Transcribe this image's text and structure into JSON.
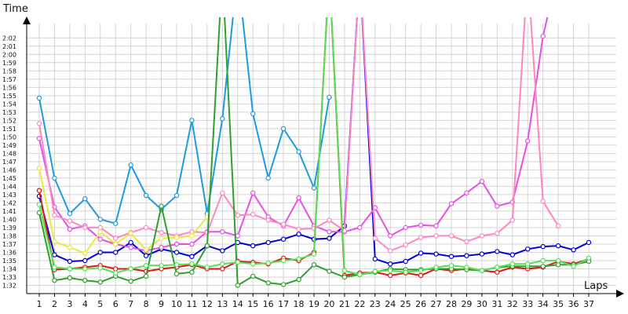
{
  "chart_data": {
    "type": "line",
    "xlabel": "Laps",
    "ylabel": "Time",
    "grid": true,
    "x_ticks": [
      "1",
      "2",
      "3",
      "4",
      "5",
      "6",
      "7",
      "8",
      "9",
      "10",
      "11",
      "12",
      "13",
      "14",
      "15",
      "16",
      "17",
      "18",
      "19",
      "20",
      "21",
      "22",
      "23",
      "24",
      "25",
      "26",
      "27",
      "28",
      "29",
      "30",
      "31",
      "32",
      "33",
      "34",
      "35",
      "36",
      "37"
    ],
    "y_ticks": [
      "1:32",
      "1:33",
      "1:34",
      "1:35",
      "1:36",
      "1:37",
      "1:38",
      "1:39",
      "1:40",
      "1:41",
      "1:42",
      "1:43",
      "1:44",
      "1:45",
      "1:46",
      "1:47",
      "1:48",
      "1:49",
      "1:50",
      "1:51",
      "1:52",
      "1:53",
      "1:54",
      "1:55",
      "1:56",
      "1:57",
      "1:58",
      "1:59",
      "2:00",
      "2:01",
      "2:02"
    ],
    "ylim": [
      "1:31",
      "2:04.5"
    ],
    "series": [
      {
        "color": "#1e9be0",
        "values": [
          "1:54.7",
          "1:45",
          "1:40.7",
          "1:42.5",
          "1:40",
          "1:39.5",
          "1:46.6",
          "1:42.9",
          "1:41.2",
          "1:42.9",
          "1:52",
          "1:40.7",
          "1:52.2",
          "2:10",
          "1:52.8",
          "1:45",
          "1:51",
          "1:48.2",
          "1:43.8",
          "1:54.8",
          null,
          null,
          null,
          null,
          null,
          null,
          null,
          null,
          null,
          null,
          null,
          null,
          null,
          null,
          null,
          null,
          null
        ]
      },
      {
        "color": "#0000d8",
        "values": [
          "1:42.8",
          "1:35.7",
          "1:34.9",
          "1:35",
          "1:36",
          "1:36",
          "1:37.2",
          "1:35.6",
          "1:36.4",
          "1:36",
          "1:35.5",
          "1:36.8",
          "1:36.2",
          "1:37.2",
          "1:36.8",
          "1:37.2",
          "1:37.6",
          "1:38.2",
          "1:37.6",
          "1:37.7",
          "1:39.2",
          "2:10",
          "1:35.2",
          "1:34.6",
          "1:34.9",
          "1:35.9",
          "1:35.8",
          "1:35.5",
          "1:35.6",
          "1:35.8",
          "1:36.1",
          "1:35.7",
          "1:36.4",
          "1:36.7",
          "1:36.8",
          "1:36.3",
          "1:37.2"
        ]
      },
      {
        "color": "#e84fe8",
        "values": [
          "1:49.8",
          "1:41.5",
          "1:38.8",
          "1:39.2",
          "1:37.6",
          "1:37",
          "1:36.6",
          "1:36.2",
          "1:36.6",
          "1:37",
          "1:37",
          "1:38.5",
          "1:38.5",
          "1:38",
          "1:43.2",
          "1:40.3",
          "1:39.2",
          "1:42.6",
          "1:39.2",
          "1:38.5",
          "1:38.5",
          "1:39",
          "1:41.4",
          "1:38",
          "1:39",
          "1:39.3",
          "1:39.2",
          "1:41.9",
          "1:43.2",
          "1:44.6",
          "1:41.6",
          "1:42.1",
          "1:49.5",
          "2:02.2",
          "2:10",
          null,
          null
        ]
      },
      {
        "color": "#ff86c2",
        "values": [
          "1:51.6",
          "1:40.5",
          "1:39.8",
          "1:39",
          "1:39",
          "1:37.7",
          "1:38.4",
          "1:39",
          "1:38.4",
          "1:38",
          "1:38.5",
          "1:38.4",
          "1:43.2",
          "1:40.5",
          "1:40.6",
          "1:39.9",
          "1:39.4",
          "1:38.8",
          "1:38.9",
          "1:39.9",
          "1:38.6",
          "2:10",
          "1:37.7",
          "1:36.2",
          "1:36.9",
          "1:37.8",
          "1:38",
          "1:38",
          "1:37.3",
          "1:38",
          "1:38.3",
          "1:39.9",
          "2:10",
          "1:42.2",
          "1:39.2",
          null,
          null
        ]
      },
      {
        "color": "#e8e840",
        "values": [
          "1:46.2",
          "1:37.3",
          "1:36.6",
          "1:35.9",
          "1:38.5",
          "1:37",
          "1:38.3",
          "1:36.3",
          "1:37.7",
          "1:37.8",
          "1:38",
          "1:40.3",
          null,
          null,
          null,
          null,
          null,
          null,
          null,
          null,
          null,
          null,
          null,
          null,
          null,
          null,
          null,
          null,
          null,
          null,
          null,
          null,
          null,
          null,
          null,
          null,
          null
        ]
      },
      {
        "color": "#e01515",
        "values": [
          "1:43.5",
          "1:33.9",
          "1:34",
          "1:34.2",
          "1:34.4",
          "1:34",
          "1:34",
          "1:33.7",
          "1:34",
          "1:34.2",
          "1:34.5",
          "1:34",
          "1:34",
          "1:34.9",
          "1:34.8",
          "1:34.6",
          "1:35.3",
          "1:35",
          "1:36",
          "2:10",
          "1:33.2",
          "1:33.5",
          "1:33.6",
          "1:33.2",
          "1:33.5",
          "1:33.2",
          "1:34",
          "1:33.8",
          "1:34",
          "1:33.8",
          "1:33.6",
          "1:34.2",
          "1:34",
          "1:34.2",
          "1:34.9",
          "1:34.6",
          "1:35.2"
        ]
      },
      {
        "color": "#2ea02e",
        "values": [
          "1:40.8",
          "1:32.6",
          "1:32.9",
          "1:32.6",
          "1:32.4",
          "1:33.1",
          "1:32.5",
          "1:33.1",
          "1:41.6",
          "1:33.4",
          "1:33.6",
          "1:36.8",
          "2:10",
          "1:32",
          "1:33.1",
          "1:32.3",
          "1:32.1",
          "1:32.7",
          "1:34.5",
          "1:33.7",
          "1:33",
          "1:33.3",
          "1:33.6",
          "1:34",
          "1:33.9",
          "1:33.9",
          "1:34",
          "1:34",
          "1:33.9",
          "1:33.8",
          "1:34.2",
          "1:34.3",
          "1:34.3",
          "1:34.3",
          "1:34.5",
          "1:34.5",
          "1:34.9"
        ]
      },
      {
        "color": "#55e055",
        "values": [
          "1:41.8",
          "1:34.2",
          "1:34",
          "1:34",
          "1:34.1",
          "1:33.5",
          "1:34",
          "1:34.4",
          "1:34.4",
          "1:34.5",
          "1:34.6",
          "1:34.2",
          "1:34.6",
          "1:34.8",
          "1:34.6",
          "1:34.7",
          "1:35",
          "1:35.2",
          "1:35.8",
          "2:10",
          "1:33.8",
          "1:33.3",
          "1:33.7",
          "1:33.8",
          "1:33.6",
          "1:33.8",
          "1:34.2",
          "1:34.4",
          "1:34.2",
          "1:33.8",
          "1:34.2",
          "1:34.6",
          "1:34.6",
          "1:35",
          "1:35",
          "1:34.3",
          "1:35.3"
        ]
      }
    ]
  }
}
